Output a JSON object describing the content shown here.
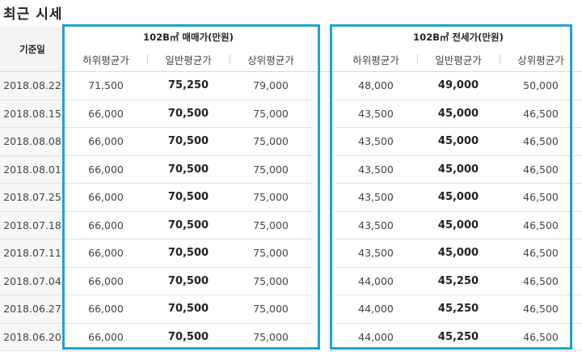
{
  "title": "최근 시세",
  "date_header": "기준일",
  "sale": {
    "header": "102B㎡ 매매가(만원)",
    "cols": [
      "하위평균가",
      "일반평균가",
      "상위평균가"
    ]
  },
  "jeonse": {
    "header": "102B㎡ 전세가(만원)",
    "cols": [
      "하위평균가",
      "일반평균가",
      "상위평균가"
    ]
  },
  "rows": [
    {
      "date": "2018.08.22",
      "sale": [
        "71,500",
        "75,250",
        "79,000"
      ],
      "jeonse": [
        "48,000",
        "49,000",
        "50,000"
      ]
    },
    {
      "date": "2018.08.15",
      "sale": [
        "66,000",
        "70,500",
        "75,000"
      ],
      "jeonse": [
        "43,500",
        "45,000",
        "46,500"
      ]
    },
    {
      "date": "2018.08.08",
      "sale": [
        "66,000",
        "70,500",
        "75,000"
      ],
      "jeonse": [
        "43,500",
        "45,000",
        "46,500"
      ]
    },
    {
      "date": "2018.08.01",
      "sale": [
        "66,000",
        "70,500",
        "75,000"
      ],
      "jeonse": [
        "43,500",
        "45,000",
        "46,500"
      ]
    },
    {
      "date": "2018.07.25",
      "sale": [
        "66,000",
        "70,500",
        "75,000"
      ],
      "jeonse": [
        "43,500",
        "45,000",
        "46,500"
      ]
    },
    {
      "date": "2018.07.18",
      "sale": [
        "66,000",
        "70,500",
        "75,000"
      ],
      "jeonse": [
        "43,500",
        "45,000",
        "46,500"
      ]
    },
    {
      "date": "2018.07.11",
      "sale": [
        "66,000",
        "70,500",
        "75,000"
      ],
      "jeonse": [
        "43,500",
        "45,000",
        "46,500"
      ]
    },
    {
      "date": "2018.07.04",
      "sale": [
        "66,000",
        "70,500",
        "75,000"
      ],
      "jeonse": [
        "44,000",
        "45,250",
        "46,500"
      ]
    },
    {
      "date": "2018.06.27",
      "sale": [
        "66,000",
        "70,500",
        "75,000"
      ],
      "jeonse": [
        "44,000",
        "45,250",
        "46,500"
      ]
    },
    {
      "date": "2018.06.20",
      "sale": [
        "66,000",
        "70,500",
        "75,000"
      ],
      "jeonse": [
        "44,000",
        "45,250",
        "46,500"
      ]
    }
  ],
  "highlight_color": "#1fa0d8"
}
